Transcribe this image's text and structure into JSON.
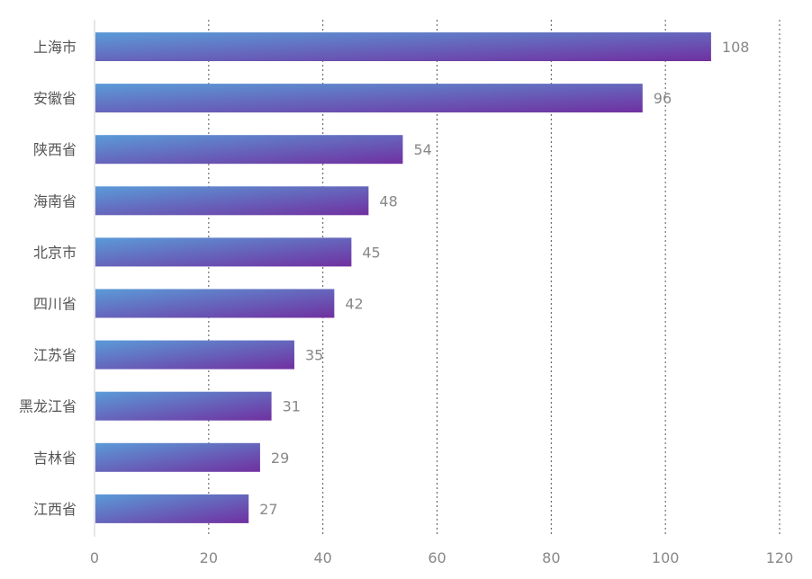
{
  "chart_data": {
    "type": "bar",
    "orientation": "horizontal",
    "categories": [
      "上海市",
      "安徽省",
      "陕西省",
      "海南省",
      "北京市",
      "四川省",
      "江苏省",
      "黑龙江省",
      "吉林省",
      "江西省"
    ],
    "values": [
      108,
      96,
      54,
      48,
      45,
      42,
      35,
      31,
      29,
      27
    ],
    "x_ticks": [
      "0",
      "20",
      "40",
      "60",
      "80",
      "100",
      "120"
    ],
    "xlim": [
      0,
      120
    ],
    "title": "",
    "xlabel": "",
    "ylabel": "",
    "grid": "vertical-dotted",
    "legend": "none",
    "colors": {
      "gradient_start": "#5b9bd8",
      "gradient_end": "#7030a0",
      "gridline": "#555555",
      "axis": "#cccccc"
    }
  }
}
